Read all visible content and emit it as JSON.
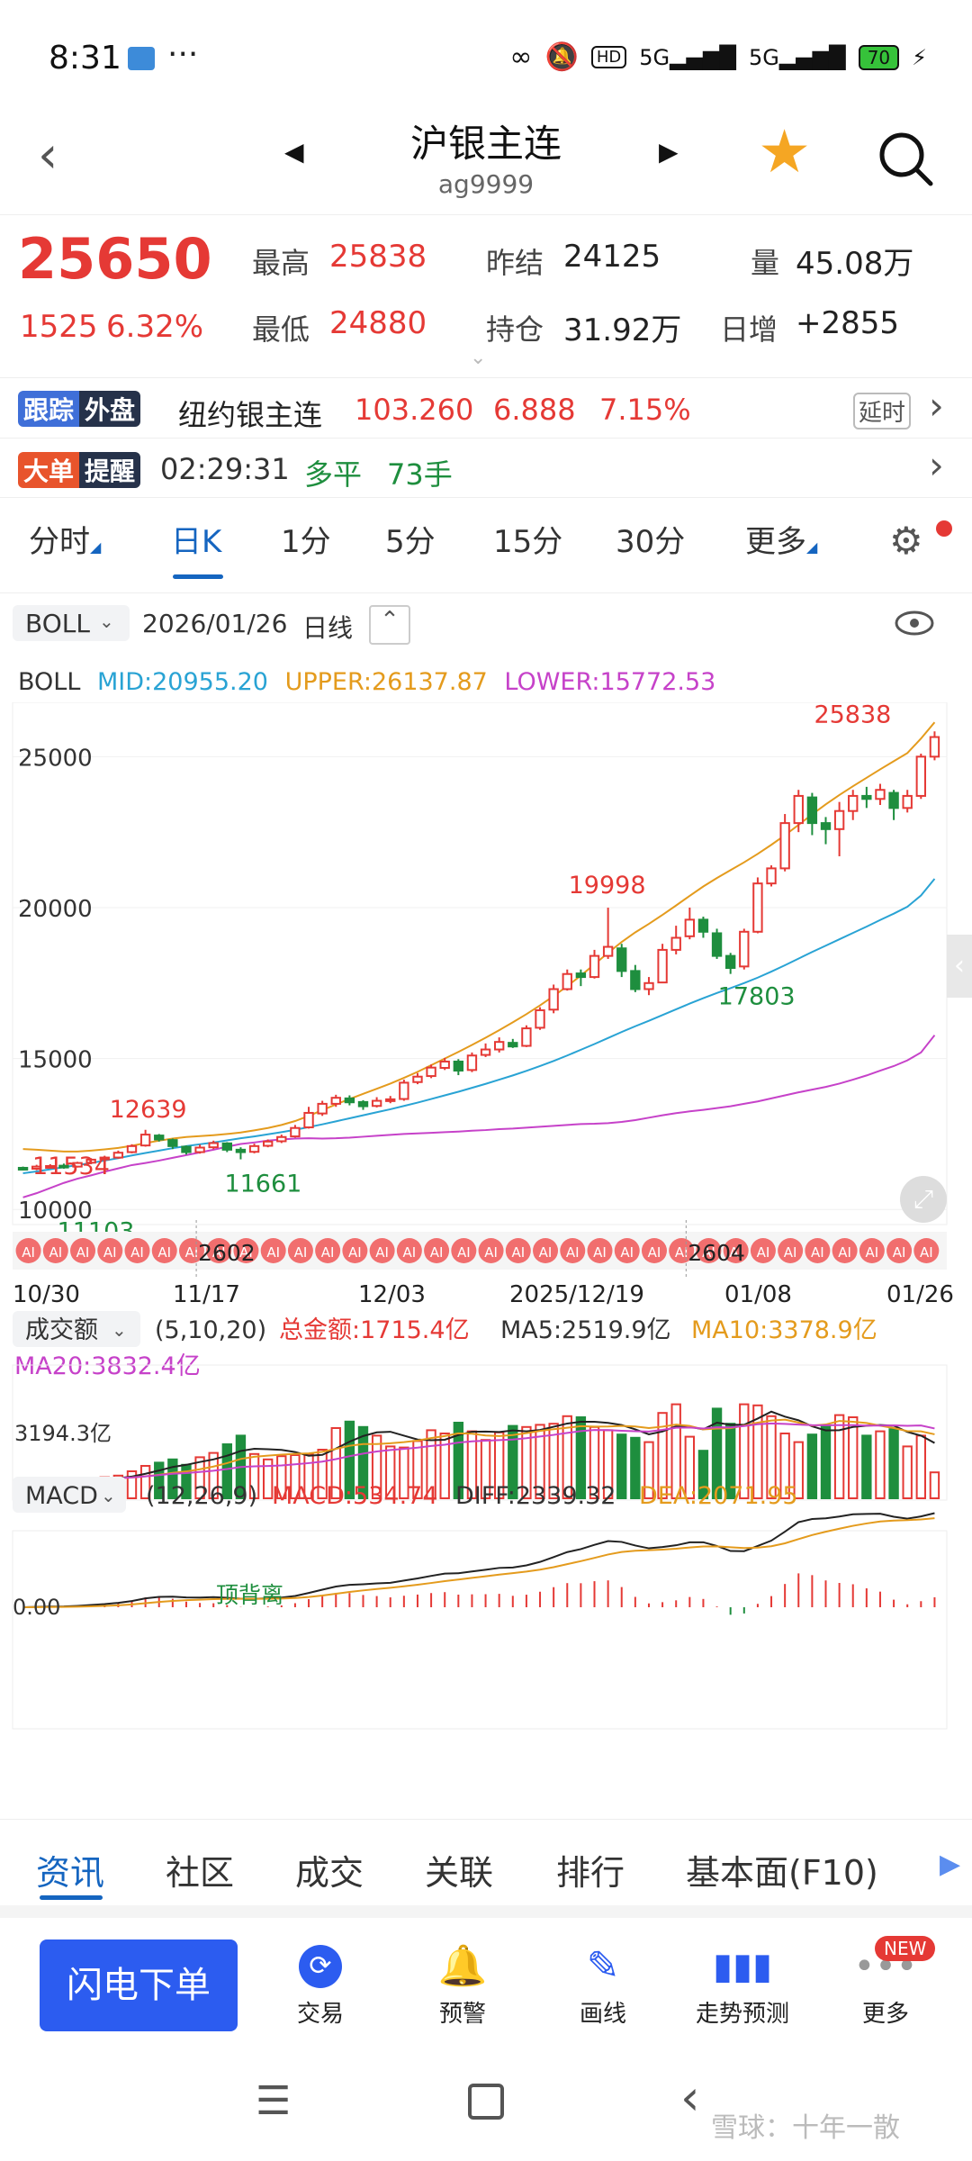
{
  "status_bar": {
    "time": "8:31",
    "network1": "5G",
    "network2": "5G",
    "hd": "HD",
    "battery": "70"
  },
  "header": {
    "title": "沪银主连",
    "code": "ag9999"
  },
  "quote": {
    "price": "25650",
    "change": "1525",
    "change_pct": "6.32%",
    "high_label": "最高",
    "high": "25838",
    "low_label": "最低",
    "low": "24880",
    "prev_label": "昨结",
    "prev": "24125",
    "oi_label": "持仓",
    "oi": "31.92万",
    "vol_label": "量",
    "vol": "45.08万",
    "daily_label": "日增",
    "daily": "+2855"
  },
  "foreign": {
    "tag1": "跟踪",
    "tag2": "外盘",
    "name": "纽约银主连",
    "price": "103.260",
    "change": "6.888",
    "pct": "7.15%",
    "delay": "延时"
  },
  "alert": {
    "tag1": "大单",
    "tag2": "提醒",
    "time": "02:29:31",
    "type": "多平",
    "qty": "73手"
  },
  "period_tabs": [
    "分时",
    "日K",
    "1分",
    "5分",
    "15分",
    "30分",
    "更多"
  ],
  "indicator_bar": {
    "name": "BOLL",
    "date": "2026/01/26",
    "freq": "日线"
  },
  "boll": {
    "label": "BOLL",
    "mid": "MID:20955.20",
    "upper": "UPPER:26137.87",
    "lower": "LOWER:15772.53"
  },
  "chart_data": {
    "type": "candlestick",
    "y_ticks": [
      "25000",
      "20000",
      "15000",
      "10000"
    ],
    "ylim": [
      9500,
      26800
    ],
    "x_ticks": [
      "10/30",
      "11/17",
      "12/03",
      "2025/12/19",
      "01/08",
      "01/26"
    ],
    "contract_marks": [
      "2602",
      "2604"
    ],
    "annotations": [
      {
        "text": "25838",
        "value": 25838
      },
      {
        "text": "19998",
        "value": 19998
      },
      {
        "text": "17803",
        "value": 17803
      },
      {
        "text": "12639",
        "value": 12639
      },
      {
        "text": "11534",
        "value": 11534
      },
      {
        "text": "11661",
        "value": 11661
      },
      {
        "text": "11103",
        "value": 11103
      }
    ],
    "candles": [
      [
        11380,
        11330,
        11420,
        11290
      ],
      [
        11350,
        11420,
        11480,
        11300
      ],
      [
        11410,
        11440,
        11500,
        11360
      ],
      [
        11450,
        11400,
        11520,
        11350
      ],
      [
        11420,
        11540,
        11580,
        11390
      ],
      [
        11550,
        11650,
        11700,
        11500
      ],
      [
        11660,
        11720,
        11780,
        11600
      ],
      [
        11720,
        11880,
        11950,
        11680
      ],
      [
        11900,
        12100,
        12160,
        11860
      ],
      [
        12120,
        12480,
        12639,
        12080
      ],
      [
        12450,
        12320,
        12500,
        12250
      ],
      [
        12300,
        12100,
        12350,
        12000
      ],
      [
        12080,
        11900,
        12120,
        11820
      ],
      [
        11900,
        12050,
        12150,
        11850
      ],
      [
        12060,
        12200,
        12280,
        12000
      ],
      [
        12190,
        11980,
        12230,
        11900
      ],
      [
        11980,
        11900,
        12060,
        11661
      ],
      [
        11910,
        12100,
        12180,
        11860
      ],
      [
        12110,
        12250,
        12320,
        12060
      ],
      [
        12260,
        12400,
        12480,
        12200
      ],
      [
        12420,
        12700,
        12800,
        12380
      ],
      [
        12720,
        13200,
        13400,
        12680
      ],
      [
        13180,
        13500,
        13600,
        13100
      ],
      [
        13500,
        13700,
        13800,
        13400
      ],
      [
        13680,
        13550,
        13780,
        13450
      ],
      [
        13560,
        13420,
        13620,
        13300
      ],
      [
        13430,
        13600,
        13720,
        13380
      ],
      [
        13610,
        13650,
        13760,
        13520
      ],
      [
        13660,
        14200,
        14300,
        13600
      ],
      [
        14220,
        14400,
        14520,
        14150
      ],
      [
        14420,
        14700,
        14800,
        14350
      ],
      [
        14690,
        14900,
        15020,
        14620
      ],
      [
        14900,
        14600,
        14980,
        14450
      ],
      [
        14620,
        15100,
        15200,
        14550
      ],
      [
        15120,
        15300,
        15500,
        15050
      ],
      [
        15300,
        15550,
        15700,
        15200
      ],
      [
        15520,
        15400,
        15650,
        15350
      ],
      [
        15420,
        16000,
        16100,
        15380
      ],
      [
        16020,
        16600,
        16700,
        15950
      ],
      [
        16620,
        17300,
        17450,
        16500
      ],
      [
        17300,
        17800,
        17950,
        17250
      ],
      [
        17820,
        17700,
        17950,
        17400
      ],
      [
        17700,
        18400,
        18600,
        17650
      ],
      [
        18400,
        18700,
        19998,
        18300
      ],
      [
        18650,
        17900,
        18800,
        17700
      ],
      [
        17900,
        17300,
        18100,
        17200
      ],
      [
        17300,
        17500,
        17700,
        17100
      ],
      [
        17520,
        18600,
        18800,
        17500
      ],
      [
        18600,
        19000,
        19400,
        18450
      ],
      [
        19050,
        19600,
        20000,
        18950
      ],
      [
        19600,
        19200,
        19700,
        19000
      ],
      [
        19150,
        18400,
        19300,
        18300
      ],
      [
        18400,
        18000,
        18500,
        17803
      ],
      [
        18050,
        19200,
        19300,
        17950
      ],
      [
        19200,
        20800,
        21000,
        19150
      ],
      [
        20800,
        21300,
        21400,
        20700
      ],
      [
        21300,
        22800,
        23100,
        21200
      ],
      [
        22800,
        23700,
        23900,
        22500
      ],
      [
        23650,
        22800,
        23800,
        22400
      ],
      [
        22800,
        22600,
        23000,
        22100
      ],
      [
        22600,
        23200,
        23500,
        21700
      ],
      [
        23200,
        23700,
        23900,
        22900
      ],
      [
        23700,
        23600,
        24000,
        23300
      ],
      [
        23600,
        23900,
        24100,
        23400
      ],
      [
        23800,
        23300,
        23900,
        22900
      ],
      [
        23300,
        23700,
        23900,
        23150
      ],
      [
        23700,
        25000,
        25100,
        23600
      ],
      [
        25000,
        25650,
        25838,
        24880
      ]
    ],
    "boll_mid": [
      11200,
      11260,
      11330,
      11400,
      11470,
      11540,
      11620,
      11700,
      11790,
      11870,
      11950,
      12030,
      12100,
      12160,
      12220,
      12290,
      12360,
      12420,
      12490,
      12560,
      12640,
      12730,
      12820,
      12920,
      13020,
      13120,
      13220,
      13320,
      13430,
      13540,
      13660,
      13780,
      13900,
      14030,
      14160,
      14300,
      14440,
      14590,
      14750,
      14920,
      15100,
      15290,
      15480,
      15680,
      15880,
      16070,
      16250,
      16440,
      16630,
      16820,
      17000,
      17170,
      17330,
      17500,
      17680,
      17880,
      18090,
      18310,
      18530,
      18740,
      18950,
      19160,
      19370,
      19590,
      19800,
      20030,
      20400,
      20955
    ],
    "boll_upper": [
      12000,
      11980,
      11950,
      11920,
      11920,
      11950,
      11990,
      12040,
      12110,
      12200,
      12280,
      12350,
      12400,
      12430,
      12460,
      12500,
      12550,
      12620,
      12700,
      12800,
      12930,
      13100,
      13290,
      13480,
      13660,
      13830,
      14000,
      14170,
      14360,
      14560,
      14780,
      15000,
      15220,
      15450,
      15690,
      15940,
      16200,
      16470,
      16760,
      17070,
      17400,
      17750,
      18120,
      18500,
      18860,
      19180,
      19460,
      19760,
      20070,
      20390,
      20700,
      20980,
      21240,
      21500,
      21780,
      22080,
      22400,
      22740,
      23090,
      23420,
      23730,
      24020,
      24300,
      24580,
      24850,
      25120,
      25600,
      26138
    ],
    "boll_lower": [
      10400,
      10540,
      10710,
      10880,
      11020,
      11130,
      11250,
      11360,
      11470,
      11540,
      11620,
      11710,
      11800,
      11890,
      11980,
      12080,
      12170,
      12220,
      12280,
      12320,
      12350,
      12360,
      12350,
      12360,
      12380,
      12410,
      12440,
      12470,
      12500,
      12520,
      12540,
      12560,
      12580,
      12610,
      12630,
      12660,
      12680,
      12710,
      12740,
      12770,
      12800,
      12830,
      12840,
      12860,
      12900,
      12960,
      13040,
      13120,
      13190,
      13250,
      13300,
      13360,
      13420,
      13500,
      13580,
      13680,
      13780,
      13880,
      13970,
      14060,
      14170,
      14300,
      14440,
      14600,
      14750,
      14940,
      15200,
      15773
    ]
  },
  "volume": {
    "label": "成交额",
    "params": "(5,10,20)",
    "total": "总金额:1715.4亿",
    "ma5": "MA5:2519.9亿",
    "ma10": "MA10:3378.9亿",
    "ma20": "MA20:3832.4亿",
    "axis_value": "3194.3亿",
    "values": [
      1900,
      1850,
      1750,
      1800,
      1700,
      1800,
      1950,
      2100,
      2500,
      3000,
      3300,
      3600,
      3100,
      3800,
      4200,
      5000,
      5800,
      4100,
      3600,
      3900,
      4000,
      4100,
      4500,
      6500,
      7100,
      6600,
      5800,
      4800,
      4700,
      5300,
      6300,
      6000,
      7000,
      6200,
      5400,
      6100,
      6700,
      6600,
      6800,
      6900,
      7600,
      7500,
      6600,
      6300,
      5900,
      5600,
      5200,
      7900,
      8700,
      5700,
      4400,
      8300,
      6900,
      8700,
      8600,
      7600,
      6000,
      5200,
      5900,
      6700,
      7700,
      7500,
      5800,
      6200,
      6400,
      4800,
      5800,
      2400
    ]
  },
  "macd": {
    "label": "MACD",
    "params": "(12,26,9)",
    "macd": "MACD:534.74",
    "diff": "DIFF:2339.32",
    "dea": "DEA:2071.95",
    "axis_value": "0.00",
    "note": "顶背离"
  },
  "bottom_tabs": [
    "资讯",
    "社区",
    "成交",
    "关联",
    "排行",
    "基本面(F10)"
  ],
  "action_bar": {
    "primary": "闪电下单",
    "items": [
      "交易",
      "预警",
      "画线",
      "走势预测",
      "更多"
    ],
    "badge": "NEW"
  },
  "watermark": "雪球：十年一散",
  "colors": {
    "up": "#e53935",
    "down": "#1e8e3e",
    "blue": "#1565c0",
    "mid": "#29a3d4",
    "upper": "#e49b1d",
    "lower": "#c642c9"
  }
}
